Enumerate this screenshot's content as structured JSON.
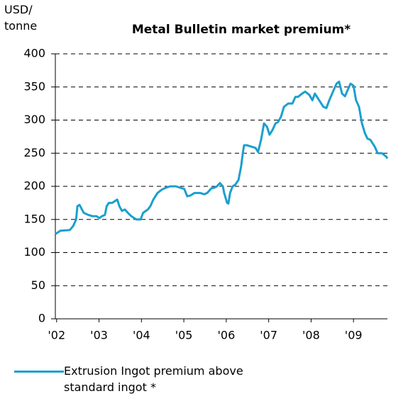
{
  "chart_data": {
    "type": "line",
    "title": "Metal Bulletin market premium*",
    "y_label": "USD/ tonne",
    "x": [
      2001.97,
      2002.09,
      2002.31,
      2002.39,
      2002.46,
      2002.49,
      2002.54,
      2002.64,
      2002.74,
      2002.84,
      2002.94,
      2003.01,
      2003.07,
      2003.14,
      2003.18,
      2003.23,
      2003.31,
      2003.38,
      2003.43,
      2003.48,
      2003.54,
      2003.61,
      2003.68,
      2003.76,
      2003.88,
      2003.98,
      2004.04,
      2004.15,
      2004.21,
      2004.28,
      2004.38,
      2004.48,
      2004.58,
      2004.68,
      2004.81,
      2004.91,
      2005.01,
      2005.08,
      2005.15,
      2005.25,
      2005.38,
      2005.48,
      2005.55,
      2005.65,
      2005.72,
      2005.78,
      2005.85,
      2005.92,
      2005.95,
      2006.02,
      2006.05,
      2006.09,
      2006.15,
      2006.22,
      2006.29,
      2006.35,
      2006.39,
      2006.42,
      2006.49,
      2006.59,
      2006.69,
      2006.75,
      2006.82,
      2006.89,
      2006.96,
      2007.02,
      2007.09,
      2007.16,
      2007.22,
      2007.29,
      2007.36,
      2007.46,
      2007.56,
      2007.63,
      2007.69,
      2007.79,
      2007.86,
      2007.96,
      2008.03,
      2008.09,
      2008.19,
      2008.29,
      2008.36,
      2008.43,
      2008.53,
      2008.6,
      2008.66,
      2008.73,
      2008.8,
      2008.86,
      2008.93,
      2009.0,
      2009.06,
      2009.13,
      2009.2,
      2009.27,
      2009.33,
      2009.4,
      2009.5,
      2009.57,
      2009.67,
      2009.77,
      2009.8
    ],
    "series": [
      {
        "name": "Extrusion Ingot premium above standard ingot *",
        "color": "#1b9fcf",
        "values": [
          128,
          133,
          134,
          140,
          150,
          170,
          172,
          160,
          157,
          155,
          155,
          152,
          155,
          157,
          170,
          175,
          175,
          178,
          180,
          170,
          163,
          165,
          160,
          155,
          150,
          150,
          160,
          165,
          170,
          180,
          190,
          195,
          198,
          200,
          200,
          198,
          196,
          185,
          186,
          190,
          190,
          188,
          190,
          197,
          198,
          200,
          205,
          200,
          190,
          175,
          174,
          190,
          200,
          203,
          210,
          230,
          250,
          262,
          262,
          260,
          258,
          252,
          270,
          295,
          290,
          278,
          285,
          295,
          297,
          305,
          320,
          325,
          325,
          335,
          335,
          340,
          343,
          338,
          330,
          340,
          330,
          320,
          318,
          330,
          345,
          355,
          358,
          340,
          336,
          345,
          355,
          352,
          330,
          320,
          295,
          280,
          272,
          270,
          260,
          250,
          250,
          245,
          242
        ]
      }
    ],
    "xlim": [
      2001.97,
      2009.8
    ],
    "xticks": [
      {
        "value": 2002,
        "label": "'02"
      },
      {
        "value": 2003,
        "label": "'03"
      },
      {
        "value": 2004,
        "label": "'04"
      },
      {
        "value": 2005,
        "label": "'05"
      },
      {
        "value": 2006,
        "label": "'06"
      },
      {
        "value": 2007,
        "label": "'07"
      },
      {
        "value": 2008,
        "label": "'08"
      },
      {
        "value": 2009,
        "label": "'09"
      }
    ],
    "ylim": [
      0,
      400
    ],
    "yticks": [
      0,
      50,
      100,
      150,
      200,
      250,
      300,
      350,
      400
    ],
    "grid": true
  }
}
